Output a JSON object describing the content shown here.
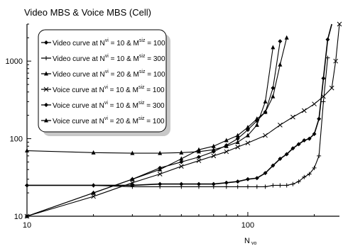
{
  "chart_data": {
    "type": "line",
    "title": "Video MBS & Voice MBS (Cell)",
    "xlabel": "N",
    "xlabel_sub": "vo",
    "ylabel": "",
    "xscale": "log",
    "yscale": "log",
    "xlim": [
      10,
      260
    ],
    "ylim": [
      10,
      3000
    ],
    "x_ticks": [
      "10",
      "100"
    ],
    "y_ticks": [
      "10",
      "100",
      "1000"
    ],
    "grid": false,
    "legend_position": "top-left",
    "series": [
      {
        "name": "Video curve at Nvi = 10 & Msiz = 100",
        "legend_text": [
          "Video curve at N",
          "vi",
          " = 10 & M",
          "siz",
          " = 100"
        ],
        "marker": "diamond",
        "color": "#000000",
        "x": [
          10,
          20,
          30,
          40,
          50,
          60,
          70,
          80,
          90,
          100,
          110,
          120,
          130,
          140,
          150,
          160,
          170,
          180,
          190,
          200,
          210,
          220,
          230,
          240
        ],
        "y": [
          25,
          25,
          25,
          26,
          26,
          26,
          26,
          27,
          28,
          30,
          31,
          36,
          45,
          55,
          63,
          75,
          85,
          95,
          100,
          115,
          180,
          600,
          1900,
          4000
        ]
      },
      {
        "name": "Video curve at Nvi = 10 & Msiz = 300",
        "legend_text": [
          "Video curve at N",
          "vi",
          " = 10 & M",
          "siz",
          " = 300"
        ],
        "marker": "plus",
        "color": "#000000",
        "x": [
          10,
          20,
          30,
          40,
          50,
          60,
          70,
          80,
          90,
          100,
          110,
          120,
          130,
          140,
          150,
          160,
          170,
          180,
          190,
          200,
          210,
          220,
          230
        ],
        "y": [
          25,
          25,
          24,
          24,
          24,
          24,
          24,
          24,
          24,
          24,
          24,
          24,
          25,
          25,
          25,
          26,
          28,
          32,
          35,
          42,
          60,
          300,
          1100
        ]
      },
      {
        "name": "Video curve at Nvi = 20 & Msiz = 100",
        "legend_text": [
          "Video curve at N",
          "vi",
          " = 20 & M",
          "siz",
          " = 100"
        ],
        "marker": "triangle",
        "color": "#000000",
        "x": [
          10,
          20,
          30,
          40,
          50,
          60,
          70,
          80,
          90,
          100,
          110,
          120,
          130
        ],
        "y": [
          70,
          66,
          65,
          65,
          66,
          68,
          72,
          80,
          90,
          110,
          150,
          300,
          1500
        ]
      },
      {
        "name": "Voice curve at Nvi = 10 & Msiz = 100",
        "legend_text": [
          "Voice curve at N",
          "vi",
          " = 10 & M",
          "siz",
          " = 100"
        ],
        "marker": "x",
        "color": "#000000",
        "x": [
          10,
          20,
          30,
          40,
          50,
          60,
          70,
          80,
          90,
          100,
          120,
          140,
          160,
          180,
          200,
          220,
          240,
          250,
          260
        ],
        "y": [
          10,
          18,
          27,
          35,
          44,
          52,
          60,
          68,
          78,
          88,
          110,
          150,
          190,
          230,
          280,
          350,
          450,
          1000,
          3000
        ]
      },
      {
        "name": "Voice curve at Nvi = 10 & Msiz = 300",
        "legend_text": [
          "Voice curve at N",
          "vi",
          " = 10 & M",
          "siz",
          " = 300"
        ],
        "marker": "diamond",
        "color": "#000000",
        "x": [
          10,
          20,
          30,
          40,
          50,
          60,
          70,
          80,
          90,
          100,
          110,
          120,
          130,
          140
        ],
        "y": [
          10,
          20,
          30,
          42,
          50,
          58,
          68,
          82,
          100,
          130,
          170,
          220,
          450,
          1800
        ]
      },
      {
        "name": "Voice curve at Nvi = 20 & Msiz = 100",
        "legend_text": [
          "Voice curve at N",
          "vi",
          " = 20 & M",
          "siz",
          " = 100"
        ],
        "marker": "triangle",
        "color": "#000000",
        "x": [
          10,
          20,
          30,
          40,
          50,
          60,
          70,
          80,
          90,
          100,
          110,
          120,
          130,
          140,
          150
        ],
        "y": [
          10,
          20,
          30,
          40,
          55,
          72,
          80,
          95,
          110,
          140,
          180,
          220,
          350,
          900,
          2000
        ]
      }
    ]
  }
}
